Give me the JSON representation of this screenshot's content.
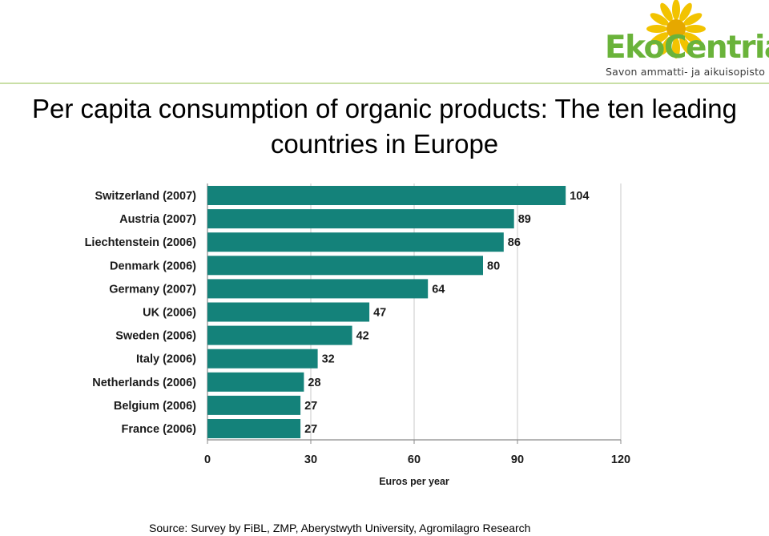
{
  "title": "Per capita consumption of organic products: The ten leading countries in Europe",
  "logo": {
    "eko": "Eko",
    "centria": "Centria",
    "tagline": "Savon ammatti- ja aikuisopisto"
  },
  "source": "Source: Survey by FiBL, ZMP, Aberystwyth University, Agromilagro Research",
  "colors": {
    "bar": "#14827a",
    "logo_green": "#6ab33a",
    "logo_yellow": "#f2c300"
  },
  "chart_data": {
    "type": "bar",
    "orientation": "horizontal",
    "categories": [
      "Switzerland (2007)",
      "Austria (2007)",
      "Liechtenstein (2006)",
      "Denmark (2006)",
      "Germany (2007)",
      "UK (2006)",
      "Sweden (2006)",
      "Italy (2006)",
      "Netherlands (2006)",
      "Belgium (2006)",
      "France (2006)"
    ],
    "values": [
      104,
      89,
      86,
      80,
      64,
      47,
      42,
      32,
      28,
      27,
      27
    ],
    "xlabel": "Euros per year",
    "xticks": [
      "0",
      "30",
      "60",
      "90",
      "120"
    ],
    "xlim": [
      0,
      120
    ],
    "grid": true
  }
}
